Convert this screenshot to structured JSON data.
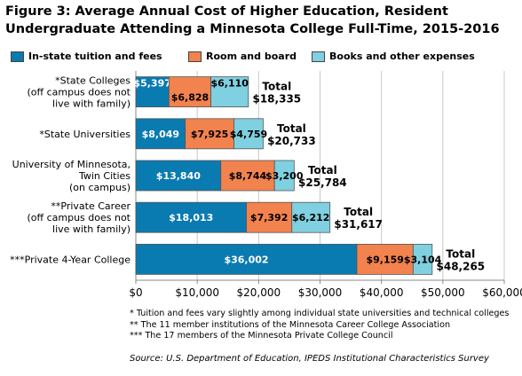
{
  "title_line1": "Figure 3: Average Annual Cost of Higher Education, Resident",
  "title_line2": "Undergraduate Attending a Minnesota College Full-Time, 2015-2016",
  "notes": [
    "* Tuition and fees vary slightly among individual state universities and technical colleges",
    "** The 11 member institutions of the Minnesota Career College Association",
    "***  The 17 members of the Minnesota Private College Council"
  ],
  "source": "Source: U.S. Department of Education, IPEDS Institutional Characteristics Survey",
  "chart_data": {
    "type": "bar",
    "orientation": "horizontal",
    "stacked": true,
    "categories": [
      [
        "*State Colleges",
        "(off campus does not",
        "live with family)"
      ],
      [
        "*State Universities"
      ],
      [
        "University of Minnesota,",
        "Twin Cities",
        "(on campus)"
      ],
      [
        "**Private Career",
        "(off campus does not",
        "live with family)"
      ],
      [
        "***Private 4-Year College"
      ]
    ],
    "series": [
      {
        "name": "In-state tuition and fees",
        "color": "#0a7bb0",
        "values": [
          5397,
          8049,
          13840,
          18013,
          36002
        ],
        "labels": [
          "$5,397",
          "$8,049",
          "$13,840",
          "$18,013",
          "$36,002"
        ],
        "label_color": "#ffffff"
      },
      {
        "name": "Room and board",
        "color": "#f2824e",
        "values": [
          6828,
          7925,
          8744,
          7392,
          9159
        ],
        "labels": [
          "$6,828",
          "$7,925",
          "$8,744",
          "$7,392",
          "$9,159"
        ],
        "label_color": "#000000"
      },
      {
        "name": "Books and other expenses",
        "color": "#7fd0e0",
        "values": [
          6110,
          4759,
          3200,
          6212,
          3104
        ],
        "labels": [
          "$6,110",
          "$4,759",
          "$3,200",
          "$6,212",
          "$3,104"
        ],
        "label_color": "#000000"
      }
    ],
    "total_label": "Total",
    "totals": [
      "$18,335",
      "$20,733",
      "$25,784",
      "$31,617",
      "$48,265"
    ],
    "xlim": [
      0,
      60000
    ],
    "xticks": [
      0,
      10000,
      20000,
      30000,
      40000,
      50000,
      60000
    ],
    "xtick_labels": [
      "$0",
      "$10,000",
      "$20,000",
      "$30,000",
      "$40,000",
      "$50,000",
      "$60,000"
    ],
    "grid": "vertical",
    "legend_position": "top"
  }
}
